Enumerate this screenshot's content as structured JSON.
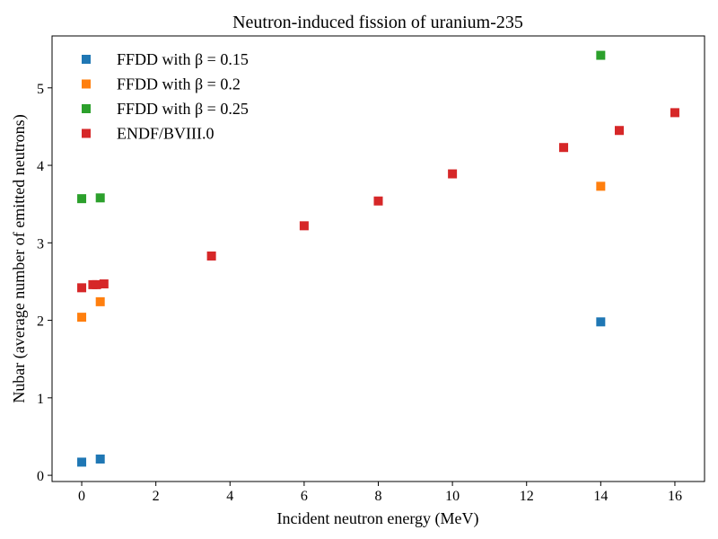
{
  "chart_data": {
    "type": "scatter",
    "title": "Neutron-induced fission of uranium-235",
    "xlabel": "Incident neutron energy (MeV)",
    "ylabel": "Nubar (average number of emitted neutrons)",
    "xlim": [
      -0.8,
      16.8
    ],
    "ylim": [
      -0.08,
      5.67
    ],
    "xticks": [
      0,
      2,
      4,
      6,
      8,
      10,
      12,
      14,
      16
    ],
    "yticks": [
      0,
      1,
      2,
      3,
      4,
      5
    ],
    "grid": false,
    "legend_position": "top-left",
    "series": [
      {
        "name": "FFDD with β = 0.15",
        "color": "#1f77b4",
        "marker": "square",
        "points": [
          [
            0.0,
            0.17
          ],
          [
            0.5,
            0.21
          ],
          [
            14.0,
            1.98
          ]
        ]
      },
      {
        "name": "FFDD with β = 0.2",
        "color": "#ff7f0e",
        "marker": "square",
        "points": [
          [
            0.0,
            2.04
          ],
          [
            0.5,
            2.24
          ],
          [
            14.0,
            3.73
          ]
        ]
      },
      {
        "name": "FFDD with β = 0.25",
        "color": "#2ca02c",
        "marker": "square",
        "points": [
          [
            0.0,
            3.57
          ],
          [
            0.5,
            3.58
          ],
          [
            14.0,
            5.42
          ]
        ]
      },
      {
        "name": "ENDF/BVIII.0",
        "color": "#d62728",
        "marker": "square",
        "points": [
          [
            0.0,
            2.42
          ],
          [
            0.3,
            2.46
          ],
          [
            0.4,
            2.46
          ],
          [
            0.6,
            2.47
          ],
          [
            3.5,
            2.83
          ],
          [
            6.0,
            3.22
          ],
          [
            8.0,
            3.54
          ],
          [
            10.0,
            3.89
          ],
          [
            13.0,
            4.23
          ],
          [
            14.5,
            4.45
          ],
          [
            16.0,
            4.68
          ]
        ]
      }
    ]
  }
}
